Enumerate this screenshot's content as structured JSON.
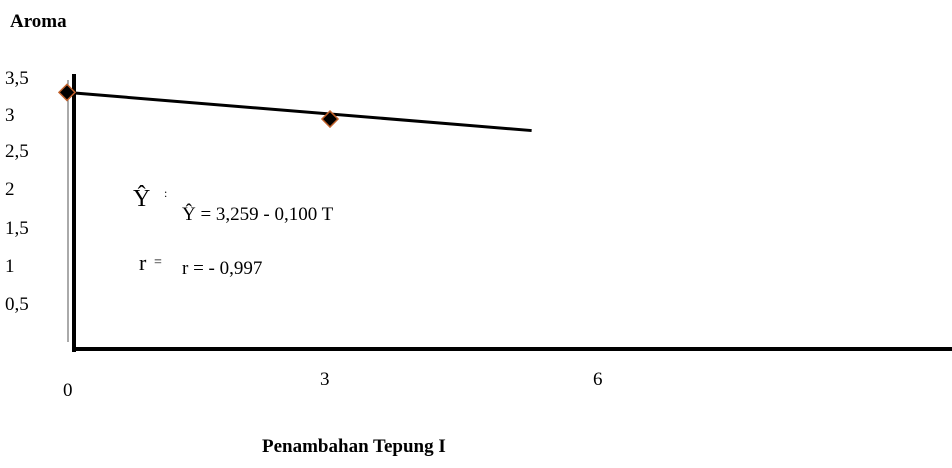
{
  "chart_data": {
    "type": "scatter",
    "title": "",
    "ylabel": "Aroma",
    "xlabel": "Penambahan Tepung I",
    "y_ticks": [
      "3,5",
      "3",
      "2,5",
      "2",
      "1,5",
      "1",
      "0,5"
    ],
    "x_ticks": [
      "0",
      "3",
      "6"
    ],
    "ylim": [
      0,
      3.5
    ],
    "xlim": [
      0,
      6
    ],
    "grid": false,
    "points": [
      {
        "x": 0,
        "y": 3.3
      },
      {
        "x": 3,
        "y": 2.93
      }
    ],
    "regression_line": {
      "x_start": 0,
      "y_start": 3.3,
      "x_end": 5.3,
      "y_end": 2.77
    },
    "annotations": {
      "y_hat_symbol": "Ŷ",
      "y_hat_colon": ":",
      "equation": "Ŷ = 3,259 - 0,100 T",
      "r_symbol": "r",
      "r_eq": "=",
      "r_value": "r = - 0,997"
    },
    "colors": {
      "marker_fill": "#000000",
      "marker_stroke": "#c0602a",
      "axis": "#000000",
      "line": "#000000"
    }
  }
}
